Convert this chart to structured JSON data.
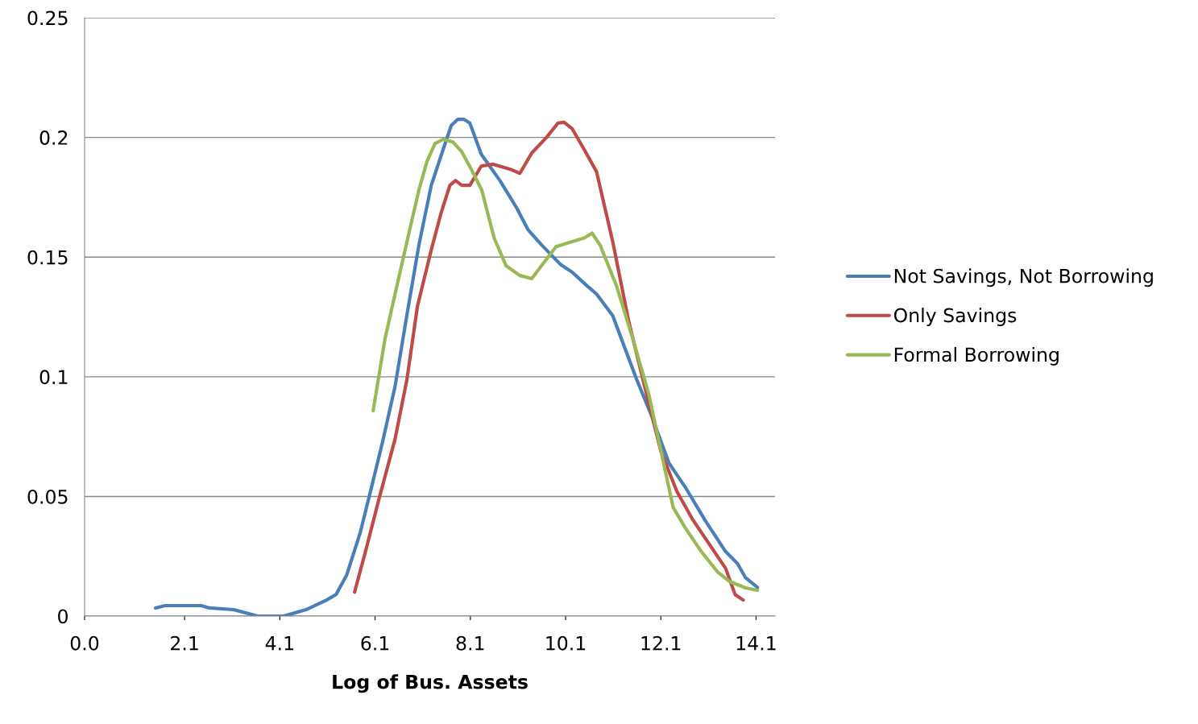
{
  "chart_data": {
    "type": "line",
    "xlabel": "Log of Bus. Assets",
    "xlim": [
      0,
      14.5
    ],
    "xticks": [
      {
        "value": 0,
        "label": "0.0"
      },
      2.1,
      4.1,
      6.1,
      8.1,
      10.1,
      12.1,
      14.1
    ],
    "ylim": [
      0,
      0.25
    ],
    "yticks": [
      0,
      0.05,
      0.1,
      0.15,
      0.2,
      0.25
    ],
    "grid": "y",
    "legend": "right",
    "marker": "none",
    "line_style": "solid",
    "series": [
      {
        "name": "Not Savings, Not Borrowing",
        "color": "#4a7ebb",
        "x": [
          1.49,
          1.69,
          2.45,
          2.62,
          3.13,
          3.64,
          4.18,
          4.65,
          5.08,
          5.28,
          5.5,
          5.79,
          6.04,
          6.26,
          6.52,
          6.77,
          7.02,
          7.28,
          7.53,
          7.7,
          7.84,
          7.96,
          8.09,
          8.33,
          8.72,
          9.06,
          9.31,
          9.6,
          9.99,
          10.24,
          10.55,
          10.75,
          11.09,
          11.59,
          11.9,
          12.27,
          12.61,
          13.03,
          13.46,
          13.71,
          13.88,
          14.13
        ],
        "values": [
          0.0034,
          0.0044,
          0.0044,
          0.0034,
          0.0027,
          0.0,
          0.0,
          0.0027,
          0.0067,
          0.009,
          0.017,
          0.035,
          0.055,
          0.073,
          0.096,
          0.126,
          0.155,
          0.18,
          0.195,
          0.205,
          0.2076,
          0.2076,
          0.206,
          0.193,
          0.182,
          0.171,
          0.1615,
          0.155,
          0.147,
          0.1437,
          0.138,
          0.1346,
          0.1255,
          0.099,
          0.084,
          0.064,
          0.054,
          0.04,
          0.027,
          0.022,
          0.016,
          0.012
        ]
      },
      {
        "name": "Only Savings",
        "color": "#be4b48",
        "x": [
          5.67,
          5.92,
          6.18,
          6.52,
          6.77,
          6.99,
          7.28,
          7.48,
          7.67,
          7.79,
          7.92,
          8.09,
          8.33,
          8.58,
          8.94,
          9.14,
          9.39,
          9.7,
          9.94,
          10.07,
          10.24,
          10.49,
          10.75,
          11.09,
          11.43,
          11.76,
          12.1,
          12.44,
          12.78,
          13.12,
          13.46,
          13.66,
          13.83
        ],
        "values": [
          0.01,
          0.0286,
          0.0488,
          0.074,
          0.099,
          0.1295,
          0.153,
          0.168,
          0.18,
          0.182,
          0.18,
          0.18,
          0.188,
          0.1888,
          0.1867,
          0.185,
          0.1935,
          0.2,
          0.206,
          0.2063,
          0.2036,
          0.195,
          0.1857,
          0.1565,
          0.1228,
          0.096,
          0.069,
          0.052,
          0.04,
          0.03,
          0.02,
          0.009,
          0.0067
        ]
      },
      {
        "name": "Formal Borrowing",
        "color": "#98b954",
        "x": [
          6.06,
          6.31,
          6.52,
          6.77,
          7.02,
          7.19,
          7.36,
          7.53,
          7.74,
          7.92,
          8.12,
          8.34,
          8.6,
          8.85,
          9.14,
          9.39,
          9.53,
          9.9,
          10.24,
          10.49,
          10.66,
          10.83,
          11.17,
          11.51,
          11.85,
          12.14,
          12.36,
          12.61,
          12.95,
          13.29,
          13.54,
          13.88,
          14.13
        ],
        "values": [
          0.0858,
          0.116,
          0.1346,
          0.1565,
          0.178,
          0.19,
          0.1975,
          0.1992,
          0.198,
          0.194,
          0.1867,
          0.178,
          0.158,
          0.1464,
          0.1423,
          0.141,
          0.1447,
          0.1544,
          0.1565,
          0.158,
          0.16,
          0.1548,
          0.138,
          0.116,
          0.0925,
          0.0656,
          0.0454,
          0.037,
          0.027,
          0.0185,
          0.0145,
          0.0118,
          0.0108
        ]
      }
    ]
  }
}
